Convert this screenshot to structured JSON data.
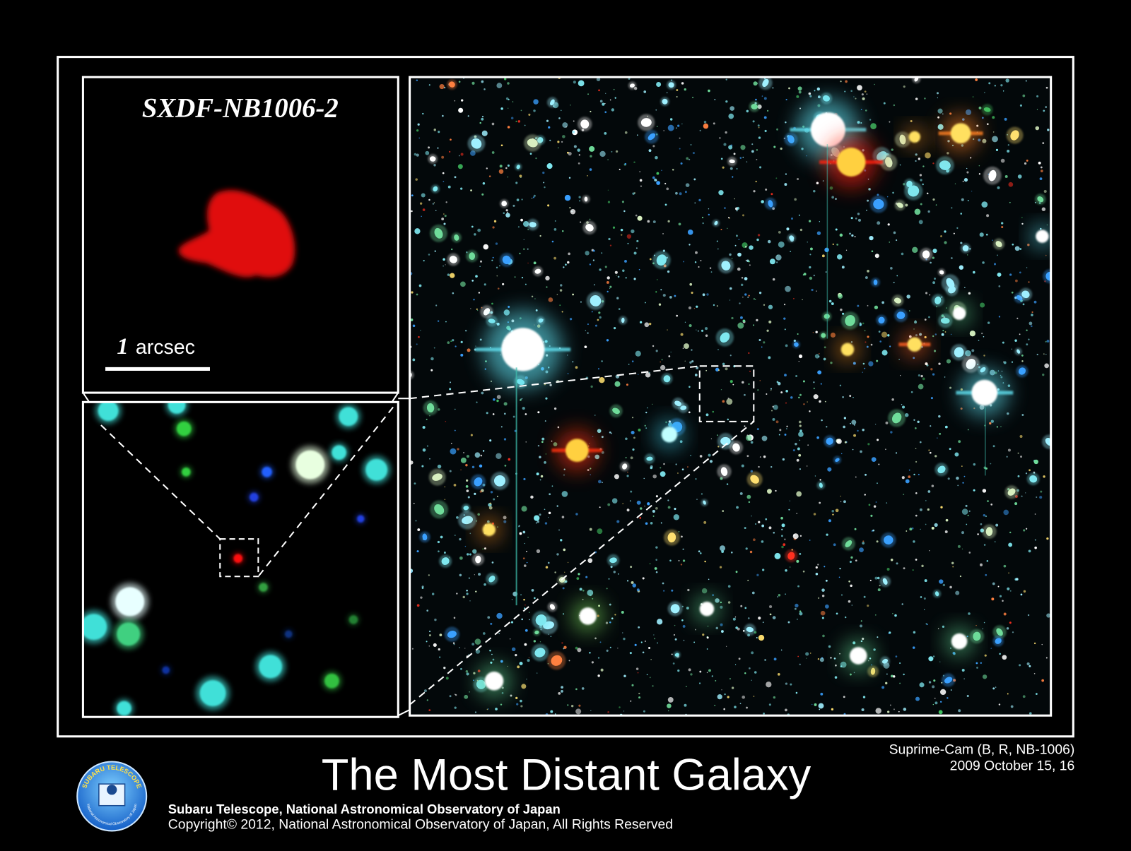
{
  "inset": {
    "title": "SXDF-NB1006-2",
    "scale_number": "1",
    "scale_unit": "arcsec"
  },
  "title": "The Most Distant Galaxy",
  "instrument": {
    "camera": "Suprime-Cam (B, R, NB-1006)",
    "date": "2009 October 15, 16"
  },
  "credit": {
    "organization": "Subaru Telescope, National Astronomical Observatory of Japan",
    "copyright": "Copyright© 2012, National Astronomical Observatory of Japan, All Rights Reserved"
  },
  "logo": {
    "top_text": "SUBARU TELESCOPE",
    "bottom_text": "National Astronomical Observatory of Japan"
  }
}
